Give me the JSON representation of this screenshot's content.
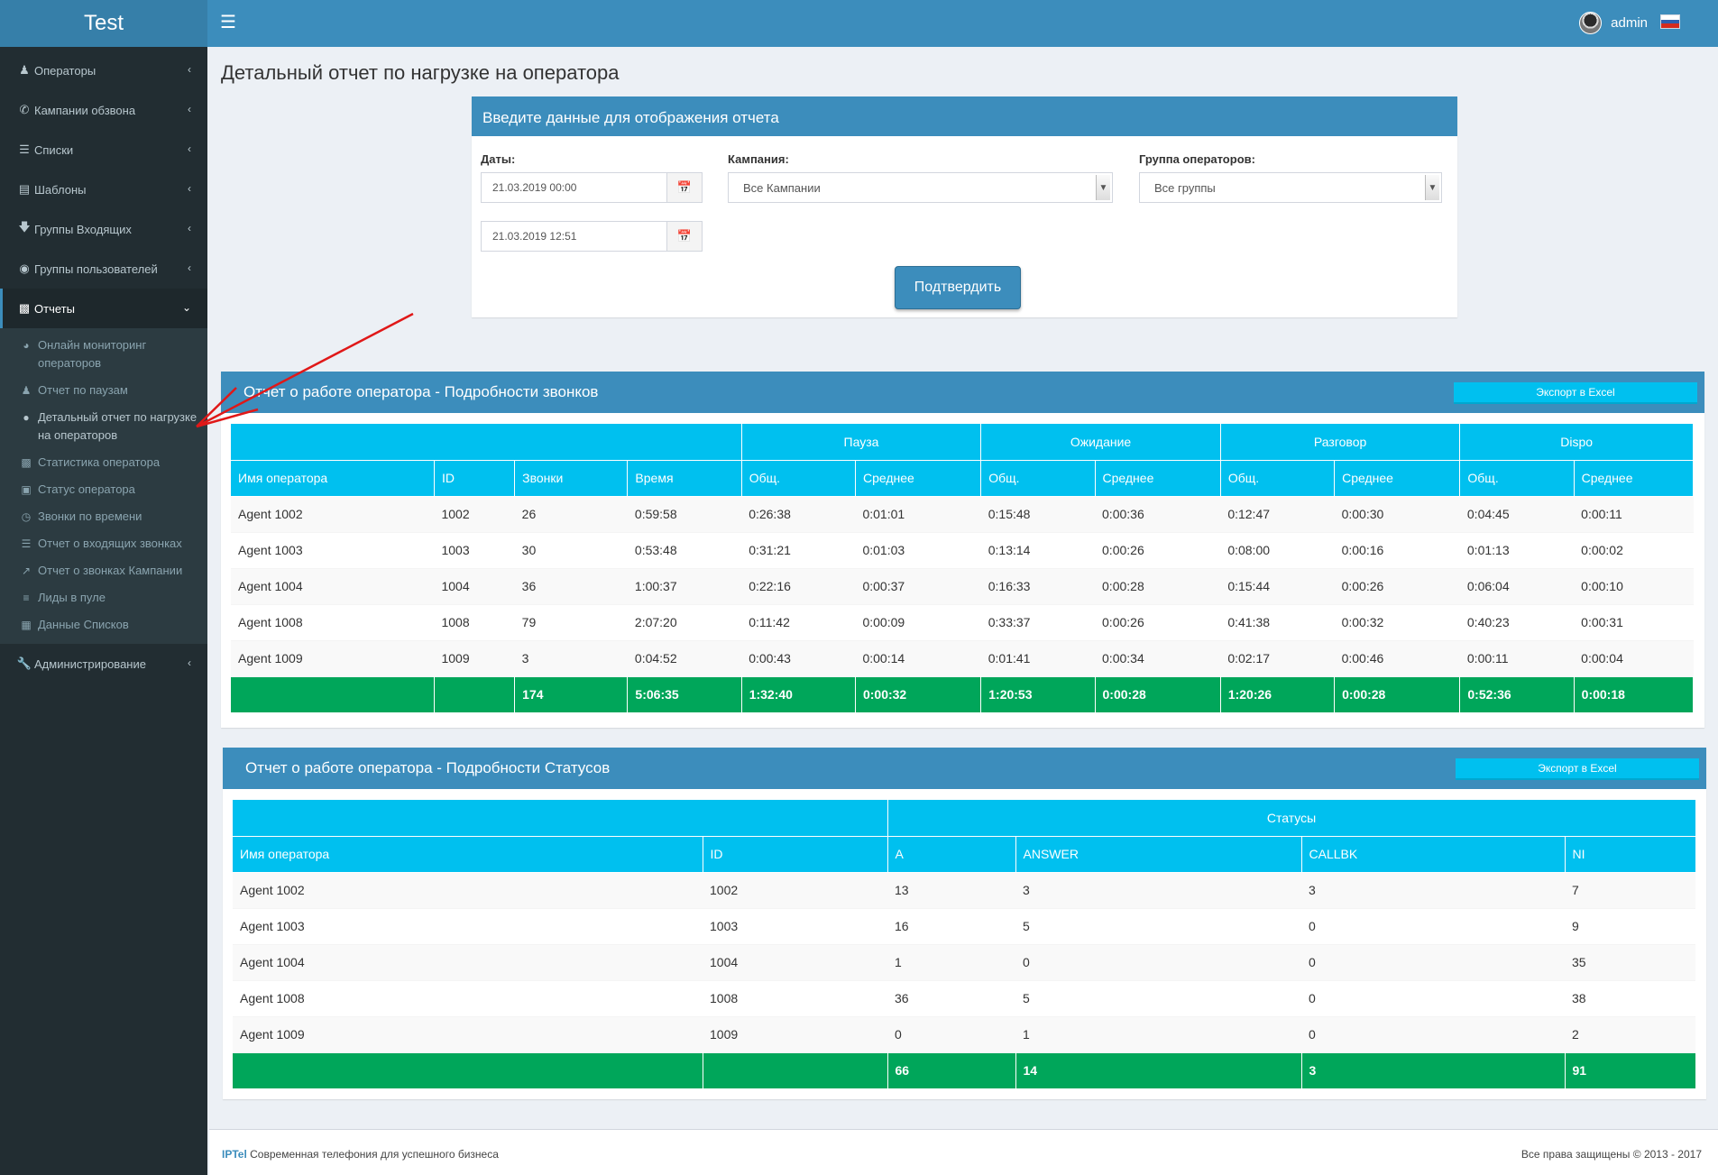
{
  "app": {
    "title": "Test",
    "user_name": "admin",
    "colors": {
      "header": "#3c8dbc",
      "sidebar": "#222d32",
      "accent": "#00c0ef",
      "total": "#00a65a"
    }
  },
  "sidebar": {
    "items": [
      {
        "label": "Операторы",
        "icon": "users-icon"
      },
      {
        "label": "Кампании обзвона",
        "icon": "phone-icon"
      },
      {
        "label": "Списки",
        "icon": "list-icon"
      },
      {
        "label": "Шаблоны",
        "icon": "template-icon"
      },
      {
        "label": "Группы Входящих",
        "icon": "arrow-down-icon"
      },
      {
        "label": "Группы пользователей",
        "icon": "user-circle-icon"
      },
      {
        "label": "Отчеты",
        "icon": "bar-chart-icon"
      }
    ],
    "reports_sub": [
      {
        "label": "Онлайн мониторинг операторов",
        "icon": "pie-chart-icon"
      },
      {
        "label": "Отчет по паузам",
        "icon": "user-icon"
      },
      {
        "label": "Детальный отчет по нагрузке на операторов",
        "icon": "circle-icon"
      },
      {
        "label": "Статистика оператора",
        "icon": "bar-chart-icon"
      },
      {
        "label": "Статус оператора",
        "icon": "id-card-icon"
      },
      {
        "label": "Звонки по времени",
        "icon": "clock-icon"
      },
      {
        "label": "Отчет о входящих звонках",
        "icon": "list-icon"
      },
      {
        "label": "Отчет о звонках Кампании",
        "icon": "line-chart-icon"
      },
      {
        "label": "Лиды в пуле",
        "icon": "bars-icon"
      },
      {
        "label": "Данные Списков",
        "icon": "table-icon"
      }
    ],
    "admin": {
      "label": "Администрирование",
      "icon": "wrench-icon"
    }
  },
  "page": {
    "title": "Детальный отчет по нагрузке на оператора"
  },
  "form": {
    "header": "Введите данные для отображения отчета",
    "dates_label": "Даты:",
    "date_from": "21.03.2019 00:00",
    "date_to": "21.03.2019 12:51",
    "campaign_label": "Кампания:",
    "campaign_value": "Все Кампании",
    "group_label": "Группа операторов:",
    "group_value": "Все группы",
    "submit": "Подтвердить"
  },
  "calls_report": {
    "title": "Отчет о работе оператора - Подробности звонков",
    "export": "Экспорт в Excel",
    "groups": [
      "Пауза",
      "Ожидание",
      "Разговор",
      "Dispo"
    ],
    "columns": [
      "Имя оператора",
      "ID",
      "Звонки",
      "Время",
      "Общ.",
      "Среднее",
      "Общ.",
      "Среднее",
      "Общ.",
      "Среднее",
      "Общ.",
      "Среднее"
    ],
    "rows": [
      [
        "Agent 1002",
        "1002",
        "26",
        "0:59:58",
        "0:26:38",
        "0:01:01",
        "0:15:48",
        "0:00:36",
        "0:12:47",
        "0:00:30",
        "0:04:45",
        "0:00:11"
      ],
      [
        "Agent 1003",
        "1003",
        "30",
        "0:53:48",
        "0:31:21",
        "0:01:03",
        "0:13:14",
        "0:00:26",
        "0:08:00",
        "0:00:16",
        "0:01:13",
        "0:00:02"
      ],
      [
        "Agent 1004",
        "1004",
        "36",
        "1:00:37",
        "0:22:16",
        "0:00:37",
        "0:16:33",
        "0:00:28",
        "0:15:44",
        "0:00:26",
        "0:06:04",
        "0:00:10"
      ],
      [
        "Agent 1008",
        "1008",
        "79",
        "2:07:20",
        "0:11:42",
        "0:00:09",
        "0:33:37",
        "0:00:26",
        "0:41:38",
        "0:00:32",
        "0:40:23",
        "0:00:31"
      ],
      [
        "Agent 1009",
        "1009",
        "3",
        "0:04:52",
        "0:00:43",
        "0:00:14",
        "0:01:41",
        "0:00:34",
        "0:02:17",
        "0:00:46",
        "0:00:11",
        "0:00:04"
      ]
    ],
    "totals": [
      "",
      "",
      "174",
      "5:06:35",
      "1:32:40",
      "0:00:32",
      "1:20:53",
      "0:00:28",
      "1:20:26",
      "0:00:28",
      "0:52:36",
      "0:00:18"
    ]
  },
  "status_report": {
    "title": "Отчет о работе оператора - Подробности Статусов",
    "export": "Экспорт в Excel",
    "group": "Статусы",
    "columns": [
      "Имя оператора",
      "ID",
      "A",
      "ANSWER",
      "CALLBK",
      "NI"
    ],
    "rows": [
      [
        "Agent 1002",
        "1002",
        "13",
        "3",
        "3",
        "7"
      ],
      [
        "Agent 1003",
        "1003",
        "16",
        "5",
        "0",
        "9"
      ],
      [
        "Agent 1004",
        "1004",
        "1",
        "0",
        "0",
        "35"
      ],
      [
        "Agent 1008",
        "1008",
        "36",
        "5",
        "0",
        "38"
      ],
      [
        "Agent 1009",
        "1009",
        "0",
        "1",
        "0",
        "2"
      ]
    ],
    "totals": [
      "",
      "",
      "66",
      "14",
      "3",
      "91"
    ]
  },
  "footer": {
    "brand": "IPTel",
    "slogan": "Современная телефония для успешного бизнеса",
    "copyright": "Все права защищены © 2013 - 2017"
  }
}
